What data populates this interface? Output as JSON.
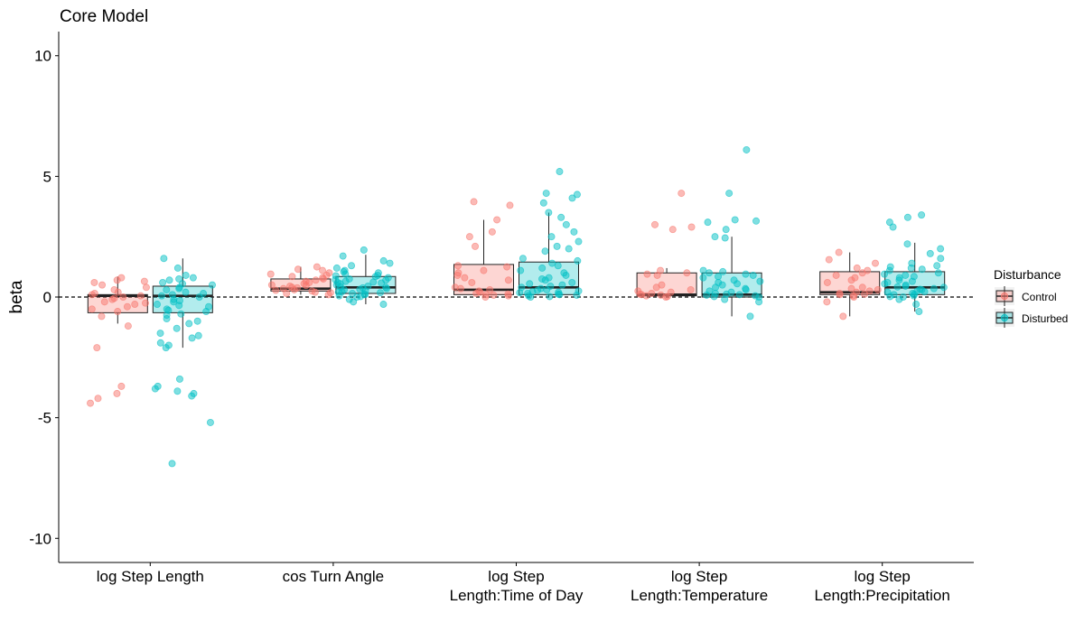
{
  "chart_data": {
    "type": "boxplot",
    "title": "Core Model",
    "ylabel": "beta",
    "ylim": [
      -11,
      11
    ],
    "yticks": [
      -10,
      -5,
      0,
      5,
      10
    ],
    "reference_line": 0,
    "legend": {
      "title": "Disturbance",
      "placement": "right",
      "entries": [
        {
          "name": "Control",
          "fill": "#F8766D"
        },
        {
          "name": "Disturbed",
          "fill": "#00BFC4"
        }
      ]
    },
    "categories": [
      "log Step Length",
      "cos Turn Angle",
      "log Step\nLength:Time of Day",
      "log Step\nLength:Temperature",
      "log Step\nLength:Precipitation"
    ],
    "groups": [
      {
        "category": "log Step Length",
        "control": {
          "whisker_low": -1.1,
          "q1": -0.65,
          "median": 0.05,
          "q3": 0.1,
          "whisker_high": 0.85,
          "points": [
            0.7,
            0.8,
            0.6,
            0.5,
            0.3,
            0.2,
            0.1,
            0.05,
            0.0,
            -0.1,
            -0.2,
            -0.3,
            -0.4,
            -0.5,
            -0.6,
            -0.8,
            -1.2,
            -2.1,
            -3.7,
            -4.0,
            -4.2,
            -4.4,
            0.65,
            0.4,
            0.15,
            -0.05,
            -0.25
          ]
        },
        "disturbed": {
          "whisker_low": -2.1,
          "q1": -0.65,
          "median": 0.05,
          "q3": 0.45,
          "whisker_high": 1.6,
          "points": [
            1.6,
            1.2,
            0.9,
            0.8,
            0.7,
            0.6,
            0.5,
            0.4,
            0.3,
            0.2,
            0.1,
            0.05,
            0.0,
            -0.1,
            -0.2,
            -0.3,
            -0.4,
            -0.5,
            -0.6,
            -0.7,
            -0.9,
            -1.1,
            -1.3,
            -1.6,
            -1.7,
            -1.9,
            -2.1,
            -3.4,
            -3.7,
            -3.8,
            -3.9,
            -4.0,
            -4.1,
            -5.2,
            -6.9,
            0.75,
            0.55,
            0.35,
            0.15,
            -0.15,
            -0.35,
            -0.55,
            -0.75,
            -1.0,
            -1.5,
            -2.0
          ]
        }
      },
      {
        "category": "cos Turn Angle",
        "control": {
          "whisker_low": 0.1,
          "q1": 0.25,
          "median": 0.35,
          "q3": 0.75,
          "whisker_high": 1.25,
          "points": [
            1.25,
            1.1,
            1.0,
            0.9,
            0.8,
            0.7,
            0.6,
            0.55,
            0.5,
            0.45,
            0.4,
            0.35,
            0.3,
            0.25,
            0.2,
            0.15,
            0.1,
            0.95,
            0.85,
            0.65,
            0.38,
            0.28,
            0.18,
            1.15,
            0.75,
            0.48
          ]
        },
        "disturbed": {
          "whisker_low": -0.3,
          "q1": 0.15,
          "median": 0.4,
          "q3": 0.85,
          "whisker_high": 1.75,
          "points": [
            1.95,
            1.7,
            1.5,
            1.4,
            1.3,
            1.2,
            1.1,
            1.0,
            0.9,
            0.85,
            0.8,
            0.75,
            0.7,
            0.65,
            0.6,
            0.55,
            0.5,
            0.45,
            0.4,
            0.35,
            0.3,
            0.25,
            0.2,
            0.15,
            0.1,
            0.05,
            0.0,
            -0.1,
            -0.2,
            -0.3,
            1.05,
            0.95,
            0.72,
            0.62,
            0.42,
            0.32,
            0.22,
            0.12,
            0.02,
            0.88,
            0.58,
            0.38,
            0.18
          ]
        }
      },
      {
        "category": "log Step\nLength:Time of Day",
        "control": {
          "whisker_low": 0.0,
          "q1": 0.1,
          "median": 0.3,
          "q3": 1.35,
          "whisker_high": 3.2,
          "points": [
            3.95,
            3.8,
            3.2,
            2.7,
            2.5,
            2.1,
            1.3,
            1.25,
            1.0,
            0.9,
            0.8,
            0.6,
            0.4,
            0.3,
            0.2,
            0.15,
            0.1,
            0.05,
            0.0,
            0.25,
            0.35,
            0.12,
            0.08,
            1.1,
            0.7
          ]
        },
        "disturbed": {
          "whisker_low": 0.0,
          "q1": 0.1,
          "median": 0.4,
          "q3": 1.45,
          "whisker_high": 3.5,
          "points": [
            5.2,
            4.3,
            4.25,
            4.1,
            3.9,
            3.5,
            3.3,
            3.0,
            2.7,
            2.5,
            2.3,
            2.1,
            2.0,
            1.9,
            1.6,
            1.5,
            1.4,
            1.3,
            1.2,
            1.0,
            0.9,
            0.8,
            0.7,
            0.6,
            0.5,
            0.4,
            0.35,
            0.3,
            0.25,
            0.2,
            0.15,
            0.1,
            0.05,
            0.0,
            0.45,
            0.28,
            0.18,
            0.08,
            0.02,
            1.1,
            0.75,
            0.55,
            0.12,
            0.22
          ]
        }
      },
      {
        "category": "log Step\nLength:Temperature",
        "control": {
          "whisker_low": 0.0,
          "q1": 0.05,
          "median": 0.1,
          "q3": 1.0,
          "whisker_high": 1.2,
          "points": [
            4.3,
            3.0,
            2.9,
            2.8,
            1.1,
            1.0,
            0.95,
            0.9,
            0.5,
            0.3,
            0.2,
            0.1,
            0.05,
            0.0,
            0.15,
            0.08,
            0.02,
            0.4,
            0.25,
            0.12
          ]
        },
        "disturbed": {
          "whisker_low": -0.8,
          "q1": 0.0,
          "median": 0.1,
          "q3": 1.0,
          "whisker_high": 2.5,
          "points": [
            6.1,
            4.3,
            3.2,
            3.15,
            3.1,
            2.8,
            2.5,
            2.45,
            1.1,
            1.0,
            0.95,
            0.9,
            0.8,
            0.7,
            0.6,
            0.5,
            0.4,
            0.3,
            0.2,
            0.15,
            0.1,
            0.05,
            0.0,
            -0.1,
            -0.2,
            -0.8,
            0.12,
            0.08,
            0.02,
            0.25,
            0.35,
            0.55,
            0.65,
            0.85,
            1.05
          ]
        }
      },
      {
        "category": "log Step\nLength:Precipitation",
        "control": {
          "whisker_low": -0.8,
          "q1": 0.1,
          "median": 0.2,
          "q3": 1.05,
          "whisker_high": 1.85,
          "points": [
            1.85,
            1.55,
            1.4,
            1.2,
            1.1,
            1.0,
            0.9,
            0.8,
            0.6,
            0.4,
            0.3,
            0.2,
            0.15,
            0.1,
            0.05,
            0.0,
            -0.2,
            -0.8,
            0.25,
            0.12,
            0.7,
            0.35
          ]
        },
        "disturbed": {
          "whisker_low": -0.6,
          "q1": 0.1,
          "median": 0.4,
          "q3": 1.05,
          "whisker_high": 2.25,
          "points": [
            3.4,
            3.3,
            3.1,
            2.9,
            2.2,
            2.0,
            1.8,
            1.6,
            1.4,
            1.3,
            1.2,
            1.1,
            1.0,
            0.9,
            0.8,
            0.7,
            0.6,
            0.5,
            0.45,
            0.4,
            0.35,
            0.3,
            0.25,
            0.2,
            0.15,
            0.1,
            0.05,
            0.0,
            -0.1,
            -0.3,
            -0.6,
            0.42,
            0.32,
            0.22,
            0.12,
            0.02,
            0.95,
            0.85,
            0.65,
            0.55,
            1.15,
            1.25
          ]
        }
      }
    ]
  }
}
